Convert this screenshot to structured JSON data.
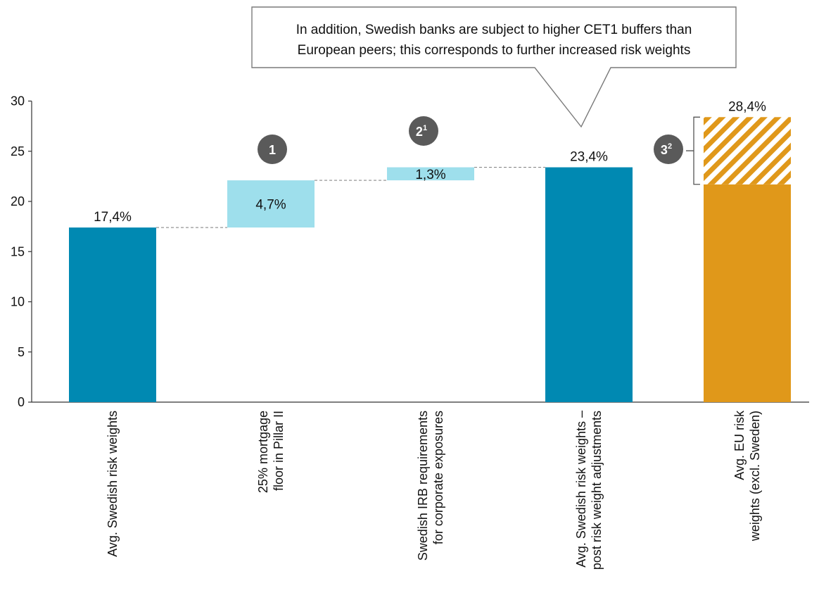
{
  "chart_data": {
    "type": "bar",
    "subtype": "waterfall",
    "title": "",
    "xlabel": "",
    "ylabel": "",
    "ylim": [
      0,
      30
    ],
    "yticks": [
      0,
      5,
      10,
      15,
      20,
      25,
      30
    ],
    "grid": false,
    "bars": [
      {
        "category": "Avg. Swedish risk weights",
        "label_lines": [
          "Avg. Swedish risk weights"
        ],
        "kind": "total",
        "base": 0,
        "value": 17.4,
        "value_label": "17,4%",
        "color": "#0089B2"
      },
      {
        "category": "25% mortgage floor in Pillar II",
        "label_lines": [
          "25% mortgage",
          "floor in Pillar II"
        ],
        "kind": "increment",
        "base": 17.4,
        "value": 4.7,
        "value_label": "4,7%",
        "color": "#9EDFEC",
        "badge": "1",
        "badge_sup": ""
      },
      {
        "category": "Swedish IRB requirements for corporate exposures",
        "label_lines": [
          "Swedish IRB requirements",
          "for corporate exposures"
        ],
        "kind": "increment",
        "base": 22.1,
        "value": 1.3,
        "value_label": "1,3%",
        "color": "#9EDFEC",
        "badge": "2",
        "badge_sup": "1"
      },
      {
        "category": "Avg. Swedish risk weights – post risk weight adjustments",
        "label_lines": [
          "Avg. Swedish risk weights –",
          "post risk weight adjustments"
        ],
        "kind": "total",
        "base": 0,
        "value": 23.4,
        "value_label": "23,4%",
        "color": "#0089B2"
      },
      {
        "category": "Avg. EU risk weights (excl. Sweden)",
        "label_lines": [
          "Avg. EU risk",
          "weights (excl. Sweden)"
        ],
        "kind": "total",
        "base": 0,
        "value": 28.4,
        "solid_value": 21.7,
        "value_label": "28,4%",
        "color": "#E0981A",
        "hatched_top": true,
        "badge": "3",
        "badge_sup": "2"
      }
    ],
    "callout": {
      "lines": [
        "In addition, Swedish banks are subject to higher CET1 buffers than",
        "European peers; this corresponds to further increased risk weights"
      ]
    }
  },
  "colors": {
    "total": "#0089B2",
    "increment": "#9EDFEC",
    "eu": "#E0981A",
    "badge": "#5A5A5A",
    "axis": "#333333",
    "connector": "#8a8a8a"
  }
}
